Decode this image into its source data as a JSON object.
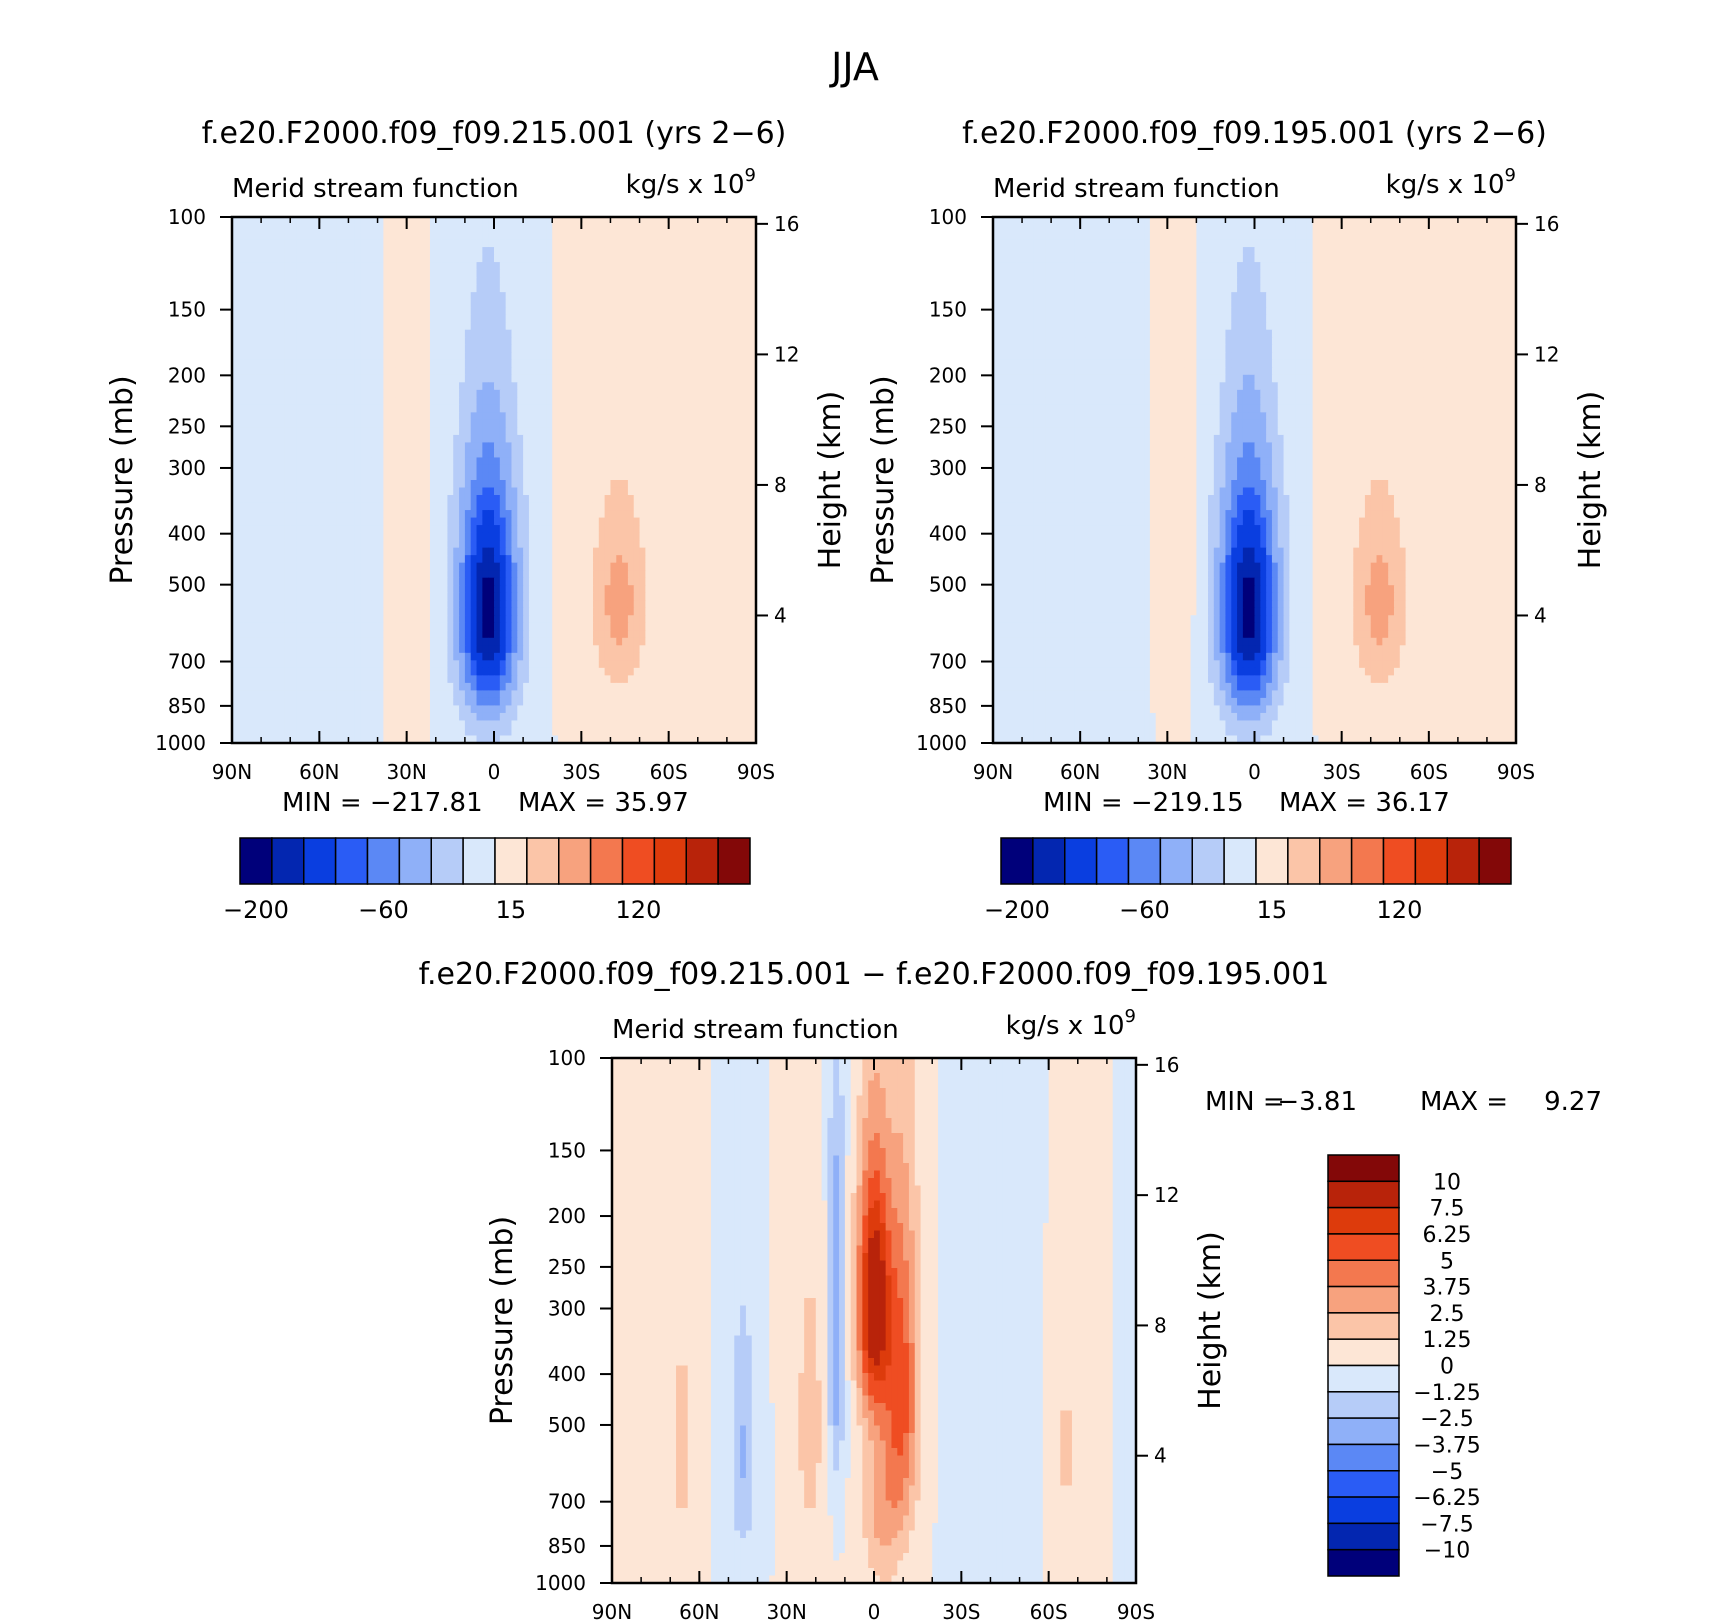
{
  "figure": {
    "title": "JJA"
  },
  "chart_data": [
    {
      "type": "contour",
      "title": "f.e20.F2000.f09_f09.215.001 (yrs 2−6)",
      "left_string": "Merid stream function",
      "right_string_base": "kg/s x 10",
      "right_string_exp": "9",
      "ylabel": "Pressure (mb)",
      "y2label": "Height (km)",
      "x_ticks": [
        "90N",
        "60N",
        "30N",
        "0",
        "30S",
        "60S",
        "90S"
      ],
      "y_ticks": [
        "100",
        "150",
        "200",
        "250",
        "300",
        "400",
        "500",
        "700",
        "850",
        "1000"
      ],
      "y_tick_values": [
        100,
        150,
        200,
        250,
        300,
        400,
        500,
        700,
        850,
        1000
      ],
      "y2_ticks": [
        "16",
        "12",
        "8",
        "4"
      ],
      "y2_tick_values": [
        16,
        12,
        8,
        4
      ],
      "xlim": [
        90,
        -90
      ],
      "ylim": [
        100,
        1000
      ],
      "min_label": "MIN = −217.81",
      "max_label": "MAX = 35.97",
      "min": -217.81,
      "max": 35.97,
      "levels_labels": [
        "−200",
        "−60",
        "15",
        "120"
      ],
      "colors": [
        "#00007a",
        "#0326b0",
        "#0a3ee0",
        "#2a5cf5",
        "#5b88f5",
        "#8fb0f8",
        "#b6ccf8",
        "#d9e8fb",
        "#fde6d6",
        "#fbc5a8",
        "#f7a27e",
        "#f3784f",
        "#ef4d22",
        "#dd3b0c",
        "#b8230a",
        "#830808"
      ],
      "features": [
        {
          "lat": 2,
          "p": 560,
          "value": -217.81,
          "sigma_lat": 6,
          "sigma_p": 180
        },
        {
          "lat": -43,
          "p": 540,
          "value": 35.97,
          "sigma_lat": 7,
          "sigma_p": 170
        },
        {
          "lat": 30,
          "p": 480,
          "value": 12,
          "sigma_lat": 3,
          "sigma_p": 200
        },
        {
          "lat": 50,
          "p": 560,
          "value": -9,
          "sigma_lat": 4,
          "sigma_p": 260
        }
      ]
    },
    {
      "type": "contour",
      "title": "f.e20.F2000.f09_f09.195.001 (yrs 2−6)",
      "left_string": "Merid stream function",
      "right_string_base": "kg/s x 10",
      "right_string_exp": "9",
      "ylabel": "Pressure (mb)",
      "y2label": "Height (km)",
      "x_ticks": [
        "90N",
        "60N",
        "30N",
        "0",
        "30S",
        "60S",
        "90S"
      ],
      "y_ticks": [
        "100",
        "150",
        "200",
        "250",
        "300",
        "400",
        "500",
        "700",
        "850",
        "1000"
      ],
      "y_tick_values": [
        100,
        150,
        200,
        250,
        300,
        400,
        500,
        700,
        850,
        1000
      ],
      "y2_ticks": [
        "16",
        "12",
        "8",
        "4"
      ],
      "y2_tick_values": [
        16,
        12,
        8,
        4
      ],
      "xlim": [
        90,
        -90
      ],
      "ylim": [
        100,
        1000
      ],
      "min_label": "MIN = −219.15",
      "max_label": "MAX = 36.17",
      "min": -219.15,
      "max": 36.17,
      "levels_labels": [
        "−200",
        "−60",
        "15",
        "120"
      ],
      "colors": [
        "#00007a",
        "#0326b0",
        "#0a3ee0",
        "#2a5cf5",
        "#5b88f5",
        "#8fb0f8",
        "#b6ccf8",
        "#d9e8fb",
        "#fde6d6",
        "#fbc5a8",
        "#f7a27e",
        "#f3784f",
        "#ef4d22",
        "#dd3b0c",
        "#b8230a",
        "#830808"
      ],
      "features": [
        {
          "lat": 2,
          "p": 560,
          "value": -219.15,
          "sigma_lat": 6,
          "sigma_p": 180
        },
        {
          "lat": -43,
          "p": 540,
          "value": 36.17,
          "sigma_lat": 7,
          "sigma_p": 170
        },
        {
          "lat": 27,
          "p": 480,
          "value": 12,
          "sigma_lat": 3,
          "sigma_p": 200
        },
        {
          "lat": 47,
          "p": 560,
          "value": -9,
          "sigma_lat": 4,
          "sigma_p": 260
        }
      ]
    },
    {
      "type": "contour",
      "title": "f.e20.F2000.f09_f09.215.001 − f.e20.F2000.f09_f09.195.001",
      "left_string": "Merid stream function",
      "right_string_base": "kg/s x 10",
      "right_string_exp": "9",
      "ylabel": "Pressure (mb)",
      "y2label": "Height (km)",
      "x_ticks": [
        "90N",
        "60N",
        "30N",
        "0",
        "30S",
        "60S",
        "90S"
      ],
      "y_ticks": [
        "100",
        "150",
        "200",
        "250",
        "300",
        "400",
        "500",
        "700",
        "850",
        "1000"
      ],
      "y_tick_values": [
        100,
        150,
        200,
        250,
        300,
        400,
        500,
        700,
        850,
        1000
      ],
      "y2_ticks": [
        "16",
        "12",
        "8",
        "4"
      ],
      "y2_tick_values": [
        16,
        12,
        8,
        4
      ],
      "xlim": [
        90,
        -90
      ],
      "ylim": [
        100,
        1000
      ],
      "min_label": "MIN =",
      "min_value": "−3.81",
      "max_label": "MAX =",
      "max_value": "9.27",
      "min": -3.81,
      "max": 9.27,
      "levels_labels": [
        "10",
        "7.5",
        "6.25",
        "5",
        "3.75",
        "2.5",
        "1.25",
        "0",
        "−1.25",
        "−2.5",
        "−3.75",
        "−5",
        "−6.25",
        "−7.5",
        "−10"
      ],
      "colors": [
        "#00007a",
        "#0326b0",
        "#0a3ee0",
        "#2a5cf5",
        "#5b88f5",
        "#8fb0f8",
        "#b6ccf8",
        "#d9e8fb",
        "#fde6d6",
        "#fbc5a8",
        "#f7a27e",
        "#f3784f",
        "#ef4d22",
        "#dd3b0c",
        "#b8230a",
        "#830808"
      ],
      "features": [
        {
          "lat": 0,
          "p": 290,
          "value": 9.27,
          "sigma_lat": 4,
          "sigma_p": 110
        },
        {
          "lat": -10,
          "p": 420,
          "value": 5,
          "sigma_lat": 4,
          "sigma_p": 220
        },
        {
          "lat": -3,
          "p": 700,
          "value": 3,
          "sigma_lat": 5,
          "sigma_p": 220
        },
        {
          "lat": 13,
          "p": 330,
          "value": -3.81,
          "sigma_lat": 2,
          "sigma_p": 200
        },
        {
          "lat": 45,
          "p": 560,
          "value": -2.6,
          "sigma_lat": 3,
          "sigma_p": 220
        },
        {
          "lat": 66,
          "p": 550,
          "value": 1.6,
          "sigma_lat": 3,
          "sigma_p": 260
        },
        {
          "lat": 22,
          "p": 500,
          "value": 1.8,
          "sigma_lat": 4,
          "sigma_p": 260
        },
        {
          "lat": -66,
          "p": 560,
          "value": 1.4,
          "sigma_lat": 3,
          "sigma_p": 260
        },
        {
          "lat": -40,
          "p": 500,
          "value": -0.8,
          "sigma_lat": 8,
          "sigma_p": 400
        }
      ]
    }
  ]
}
